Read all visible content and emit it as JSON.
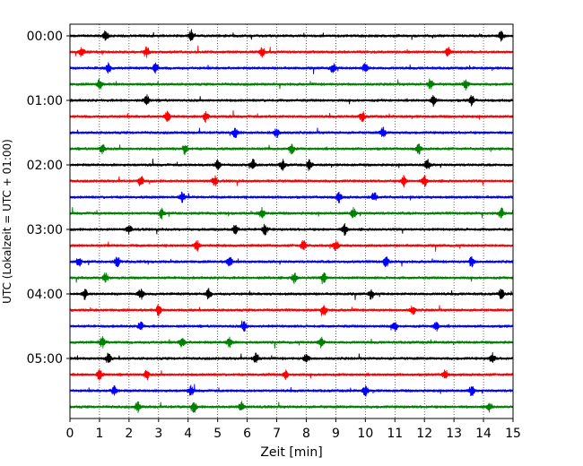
{
  "chart_data": {
    "type": "line",
    "title": "",
    "xlabel": "Zeit  [min]",
    "ylabel": "UTC (Lokalzeit = UTC + 01:00)",
    "xlim": [
      0,
      15
    ],
    "x_ticks": [
      "0",
      "1",
      "2",
      "3",
      "4",
      "5",
      "6",
      "7",
      "8",
      "9",
      "10",
      "11",
      "12",
      "13",
      "14",
      "15"
    ],
    "y_ticks": [
      "00:00",
      "01:00",
      "02:00",
      "03:00",
      "04:00",
      "05:00"
    ],
    "grid": "vertical dotted at each minute",
    "trace_interval_minutes": 15,
    "trace_count": 24,
    "color_cycle": [
      "#000000",
      "#ff0000",
      "#0000ff",
      "#008000"
    ],
    "series": [
      {
        "start": "00:00",
        "color": "#000000",
        "events": [
          1.2,
          4.1,
          14.6
        ]
      },
      {
        "start": "00:15",
        "color": "#ff0000",
        "events": [
          0.4,
          2.6,
          6.5,
          12.8
        ]
      },
      {
        "start": "00:30",
        "color": "#0000ff",
        "events": [
          1.3,
          2.9,
          8.9,
          10.0
        ]
      },
      {
        "start": "00:45",
        "color": "#008000",
        "events": [
          1.0,
          12.2,
          13.4
        ]
      },
      {
        "start": "01:00",
        "color": "#000000",
        "events": [
          2.6,
          12.3,
          13.6
        ]
      },
      {
        "start": "01:15",
        "color": "#ff0000",
        "events": [
          3.3,
          4.6,
          9.9
        ]
      },
      {
        "start": "01:30",
        "color": "#0000ff",
        "events": [
          5.6,
          7.0,
          10.6
        ]
      },
      {
        "start": "01:45",
        "color": "#008000",
        "events": [
          1.1,
          3.9,
          7.5,
          11.8
        ]
      },
      {
        "start": "02:00",
        "color": "#000000",
        "events": [
          5.0,
          6.2,
          7.2,
          8.1,
          12.1
        ]
      },
      {
        "start": "02:15",
        "color": "#ff0000",
        "events": [
          2.4,
          4.9,
          11.3,
          12.0
        ]
      },
      {
        "start": "02:30",
        "color": "#0000ff",
        "events": [
          3.8,
          9.1,
          10.3
        ]
      },
      {
        "start": "02:45",
        "color": "#008000",
        "events": [
          3.1,
          6.5,
          9.6,
          14.6
        ]
      },
      {
        "start": "03:00",
        "color": "#000000",
        "events": [
          2.0,
          5.6,
          6.6,
          9.3
        ]
      },
      {
        "start": "03:15",
        "color": "#ff0000",
        "events": [
          4.3,
          7.9,
          9.0
        ]
      },
      {
        "start": "03:30",
        "color": "#0000ff",
        "events": [
          0.3,
          1.6,
          5.4,
          10.7,
          13.6
        ]
      },
      {
        "start": "03:45",
        "color": "#008000",
        "events": [
          1.2,
          7.6,
          8.6
        ]
      },
      {
        "start": "04:00",
        "color": "#000000",
        "events": [
          0.5,
          2.4,
          4.7,
          10.2,
          14.6
        ]
      },
      {
        "start": "04:15",
        "color": "#ff0000",
        "events": [
          3.0,
          8.6,
          11.6
        ]
      },
      {
        "start": "04:30",
        "color": "#0000ff",
        "events": [
          2.4,
          5.9,
          11.0,
          12.4
        ]
      },
      {
        "start": "04:45",
        "color": "#008000",
        "events": [
          1.1,
          3.8,
          5.4,
          8.5
        ]
      },
      {
        "start": "05:00",
        "color": "#000000",
        "events": [
          1.3,
          6.3,
          8.0,
          14.3
        ]
      },
      {
        "start": "05:15",
        "color": "#ff0000",
        "events": [
          1.0,
          2.6,
          7.3,
          12.7
        ]
      },
      {
        "start": "05:30",
        "color": "#0000ff",
        "events": [
          1.5,
          4.1,
          10.0,
          13.6
        ]
      },
      {
        "start": "05:45",
        "color": "#008000",
        "events": [
          2.3,
          4.2,
          5.8,
          14.2
        ]
      }
    ]
  }
}
